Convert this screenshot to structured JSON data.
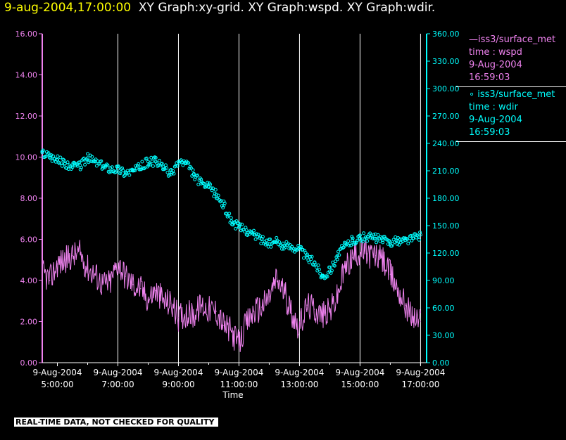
{
  "header": {
    "timestamp": "9-aug-2004,17:00:00",
    "graphs": "XY Graph:xy-grid.  XY Graph:wspd.  XY Graph:wdir."
  },
  "legend": {
    "wspd": {
      "line1": "—iss3/surface_met",
      "line2": "time : wspd",
      "line3": "9-Aug-2004",
      "line4": "16:59:03"
    },
    "wdir": {
      "line1": "∘ iss3/surface_met",
      "line2": "time : wdir",
      "line3": "9-Aug-2004",
      "line4": "16:59:03"
    }
  },
  "disclaimer": "REAL-TIME DATA, NOT CHECKED FOR QUALITY",
  "colors": {
    "wspd": "#ee82ee",
    "wdir": "#00ffff",
    "grid": "#ffffff",
    "axis": "#ffffff"
  },
  "chart_data": {
    "type": "line",
    "xlabel": "Time",
    "x_range_hours": [
      4.5,
      17.2
    ],
    "x_ticks": [
      {
        "hour": 5,
        "date": "9-Aug-2004",
        "time": "5:00:00"
      },
      {
        "hour": 7,
        "date": "9-Aug-2004",
        "time": "7:00:00"
      },
      {
        "hour": 9,
        "date": "9-Aug-2004",
        "time": "9:00:00"
      },
      {
        "hour": 11,
        "date": "9-Aug-2004",
        "time": "11:00:00"
      },
      {
        "hour": 13,
        "date": "9-Aug-2004",
        "time": "13:00:00"
      },
      {
        "hour": 15,
        "date": "9-Aug-2004",
        "time": "15:00:00"
      },
      {
        "hour": 17,
        "date": "9-Aug-2004",
        "time": "17:00:00"
      }
    ],
    "left_axis": {
      "ylim": [
        0,
        16
      ],
      "ticks": [
        "0.00",
        "2.00",
        "4.00",
        "6.00",
        "8.00",
        "10.00",
        "12.00",
        "14.00",
        "16.00"
      ]
    },
    "right_axis": {
      "ylim": [
        0,
        360
      ],
      "ticks": [
        "0.00",
        "30.00",
        "60.00",
        "90.00",
        "120.00",
        "150.00",
        "180.00",
        "210.00",
        "240.00",
        "270.00",
        "300.00",
        "330.00",
        "360.00"
      ]
    },
    "series": [
      {
        "name": "iss3/surface_met time : wspd",
        "axis": "left",
        "style": "line",
        "x": [
          4.5,
          4.75,
          5.0,
          5.25,
          5.5,
          5.75,
          6.0,
          6.25,
          6.5,
          6.75,
          7.0,
          7.25,
          7.5,
          7.75,
          8.0,
          8.25,
          8.5,
          8.75,
          9.0,
          9.25,
          9.5,
          9.75,
          10.0,
          10.25,
          10.5,
          10.75,
          11.0,
          11.25,
          11.5,
          11.75,
          12.0,
          12.25,
          12.5,
          12.75,
          13.0,
          13.25,
          13.5,
          13.75,
          14.0,
          14.25,
          14.5,
          14.75,
          15.0,
          15.25,
          15.5,
          15.75,
          16.0,
          16.25,
          16.5,
          16.75,
          17.0
        ],
        "y": [
          4.4,
          4.0,
          4.8,
          5.0,
          5.2,
          5.3,
          4.6,
          4.3,
          3.8,
          3.9,
          4.9,
          4.2,
          3.8,
          3.6,
          3.1,
          3.5,
          3.0,
          2.9,
          2.2,
          2.4,
          2.3,
          2.8,
          2.6,
          2.5,
          1.8,
          1.5,
          0.9,
          1.9,
          2.5,
          2.7,
          3.2,
          4.1,
          3.4,
          2.4,
          1.7,
          2.8,
          2.6,
          2.3,
          2.5,
          3.2,
          4.6,
          5.1,
          5.4,
          5.3,
          5.2,
          5.0,
          4.3,
          3.6,
          2.8,
          2.2,
          2.0
        ]
      },
      {
        "name": "iss3/surface_met time : wdir",
        "axis": "right",
        "style": "scatter",
        "x": [
          4.5,
          4.75,
          5.0,
          5.25,
          5.5,
          5.75,
          6.0,
          6.25,
          6.5,
          6.75,
          7.0,
          7.25,
          7.5,
          7.75,
          8.0,
          8.25,
          8.5,
          8.75,
          9.0,
          9.25,
          9.5,
          9.75,
          10.0,
          10.25,
          10.5,
          10.75,
          11.0,
          11.25,
          11.5,
          11.75,
          12.0,
          12.25,
          12.5,
          12.75,
          13.0,
          13.25,
          13.5,
          13.75,
          14.0,
          14.25,
          14.5,
          14.75,
          15.0,
          15.25,
          15.5,
          15.75,
          16.0,
          16.25,
          16.5,
          16.75,
          17.0
        ],
        "y": [
          230,
          227,
          222,
          218,
          214,
          216,
          224,
          220,
          215,
          213,
          212,
          208,
          210,
          214,
          220,
          220,
          214,
          206,
          220,
          218,
          206,
          196,
          192,
          184,
          172,
          155,
          148,
          145,
          140,
          135,
          130,
          132,
          128,
          127,
          125,
          115,
          110,
          95,
          100,
          117,
          128,
          134,
          136,
          138,
          136,
          134,
          132,
          133,
          134,
          136,
          140
        ]
      }
    ]
  }
}
